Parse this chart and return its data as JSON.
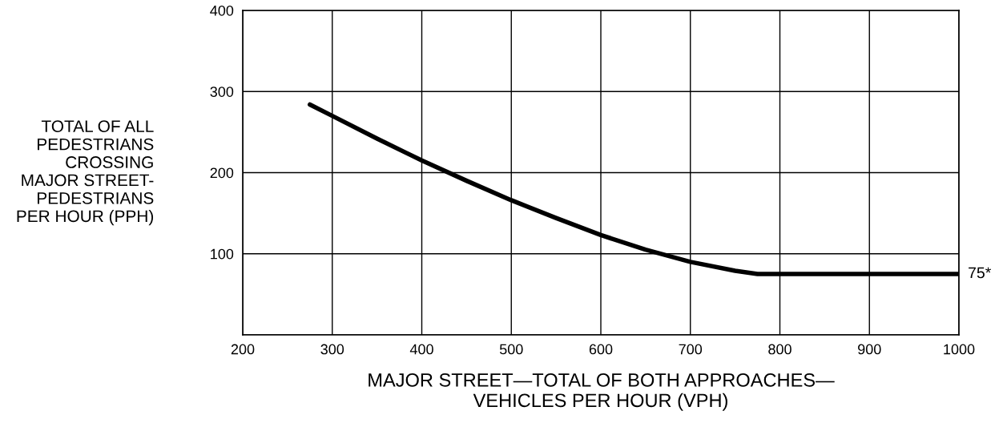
{
  "chart_data": {
    "type": "line",
    "xlabel": "MAJOR STREET—TOTAL OF BOTH APPROACHES—\nVEHICLES PER HOUR (VPH)",
    "ylabel": "TOTAL OF ALL\nPEDESTRIANS\nCROSSING\nMAJOR STREET-\nPEDESTRIANS\nPER HOUR (PPH)",
    "x": [
      275,
      300,
      350,
      400,
      450,
      500,
      550,
      600,
      650,
      700,
      750,
      775,
      800,
      900,
      1000
    ],
    "series": [
      {
        "color": "#000000",
        "values": [
          284,
          270,
          242,
          215,
          190,
          166,
          144,
          123,
          105,
          90,
          79,
          75,
          75,
          75,
          75
        ]
      }
    ],
    "xlim": [
      200,
      1000
    ],
    "ylim": [
      0,
      400
    ],
    "xticks": [
      200,
      300,
      400,
      500,
      600,
      700,
      800,
      900,
      1000
    ],
    "yticks": [
      {
        "value": 0,
        "label": null
      },
      100,
      200,
      300,
      400
    ],
    "grid": true,
    "annotations": [
      {
        "text": "75*",
        "x": 1000,
        "y": 75
      }
    ]
  }
}
